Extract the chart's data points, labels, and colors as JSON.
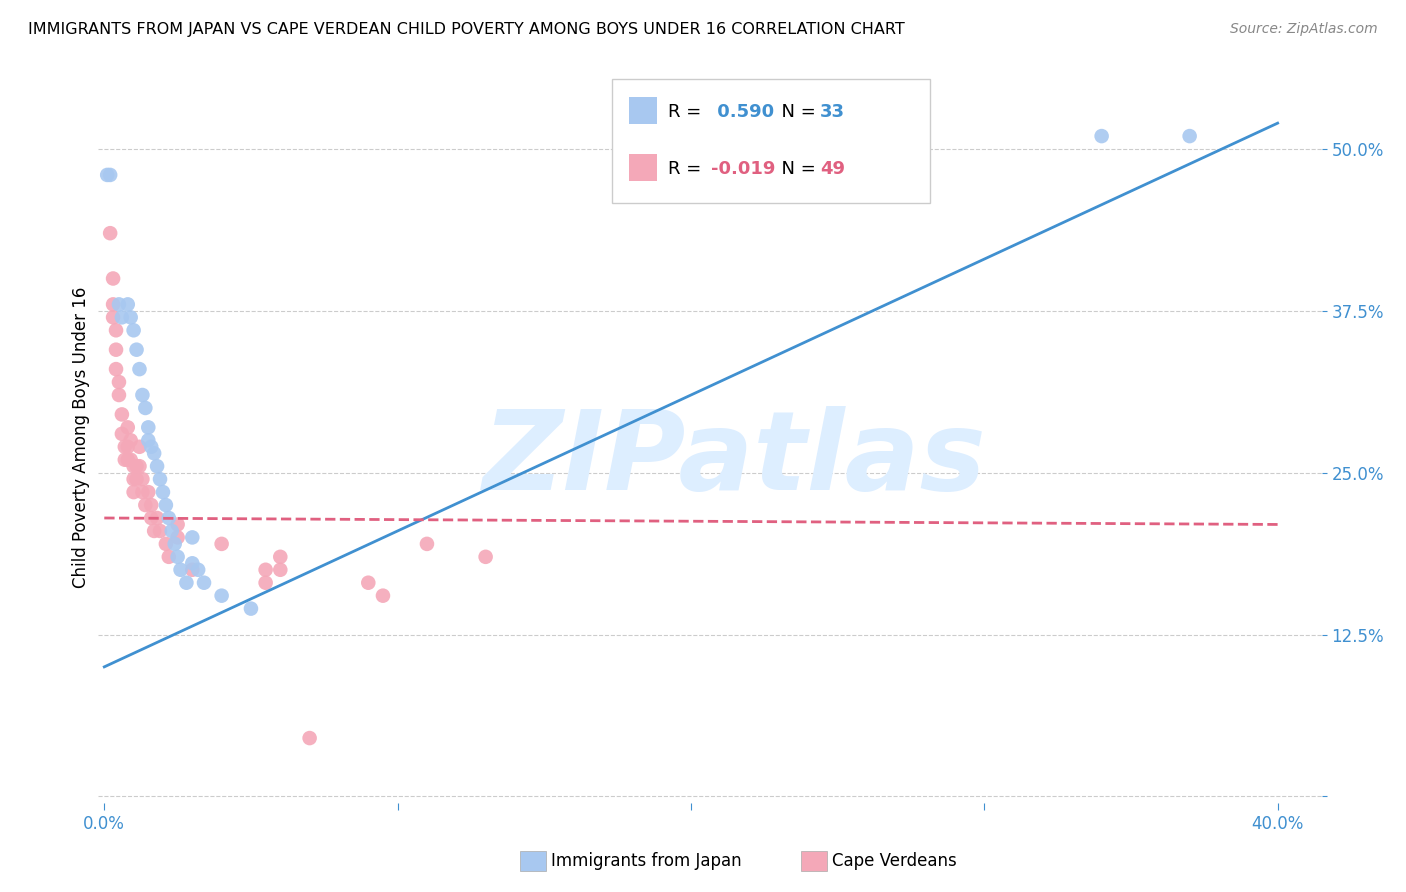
{
  "title": "IMMIGRANTS FROM JAPAN VS CAPE VERDEAN CHILD POVERTY AMONG BOYS UNDER 16 CORRELATION CHART",
  "source": "Source: ZipAtlas.com",
  "ylabel": "Child Poverty Among Boys Under 16",
  "legend_label1": "Immigrants from Japan",
  "legend_label2": "Cape Verdeans",
  "R1": 0.59,
  "N1": 33,
  "R2": -0.019,
  "N2": 49,
  "color_blue": "#A8C8F0",
  "color_pink": "#F4A8B8",
  "line_blue": "#4090D0",
  "line_pink": "#E06080",
  "watermark": "ZIPatlas",
  "watermark_color": "#DDEEFF",
  "blue_scatter": [
    [
      0.001,
      0.48
    ],
    [
      0.002,
      0.48
    ],
    [
      0.005,
      0.38
    ],
    [
      0.006,
      0.37
    ],
    [
      0.008,
      0.38
    ],
    [
      0.009,
      0.37
    ],
    [
      0.01,
      0.36
    ],
    [
      0.011,
      0.345
    ],
    [
      0.012,
      0.33
    ],
    [
      0.013,
      0.31
    ],
    [
      0.014,
      0.3
    ],
    [
      0.015,
      0.285
    ],
    [
      0.015,
      0.275
    ],
    [
      0.016,
      0.27
    ],
    [
      0.017,
      0.265
    ],
    [
      0.018,
      0.255
    ],
    [
      0.019,
      0.245
    ],
    [
      0.02,
      0.235
    ],
    [
      0.021,
      0.225
    ],
    [
      0.022,
      0.215
    ],
    [
      0.023,
      0.205
    ],
    [
      0.024,
      0.195
    ],
    [
      0.025,
      0.185
    ],
    [
      0.026,
      0.175
    ],
    [
      0.028,
      0.165
    ],
    [
      0.03,
      0.2
    ],
    [
      0.03,
      0.18
    ],
    [
      0.032,
      0.175
    ],
    [
      0.034,
      0.165
    ],
    [
      0.04,
      0.155
    ],
    [
      0.05,
      0.145
    ],
    [
      0.34,
      0.51
    ],
    [
      0.37,
      0.51
    ]
  ],
  "pink_scatter": [
    [
      0.002,
      0.435
    ],
    [
      0.003,
      0.4
    ],
    [
      0.003,
      0.38
    ],
    [
      0.003,
      0.37
    ],
    [
      0.004,
      0.36
    ],
    [
      0.004,
      0.345
    ],
    [
      0.004,
      0.33
    ],
    [
      0.005,
      0.32
    ],
    [
      0.005,
      0.31
    ],
    [
      0.006,
      0.295
    ],
    [
      0.006,
      0.28
    ],
    [
      0.007,
      0.27
    ],
    [
      0.007,
      0.26
    ],
    [
      0.008,
      0.285
    ],
    [
      0.008,
      0.27
    ],
    [
      0.008,
      0.26
    ],
    [
      0.009,
      0.275
    ],
    [
      0.009,
      0.26
    ],
    [
      0.01,
      0.255
    ],
    [
      0.01,
      0.245
    ],
    [
      0.01,
      0.235
    ],
    [
      0.011,
      0.255
    ],
    [
      0.011,
      0.245
    ],
    [
      0.012,
      0.27
    ],
    [
      0.012,
      0.255
    ],
    [
      0.013,
      0.245
    ],
    [
      0.013,
      0.235
    ],
    [
      0.014,
      0.225
    ],
    [
      0.015,
      0.235
    ],
    [
      0.016,
      0.225
    ],
    [
      0.016,
      0.215
    ],
    [
      0.017,
      0.205
    ],
    [
      0.018,
      0.215
    ],
    [
      0.019,
      0.205
    ],
    [
      0.021,
      0.195
    ],
    [
      0.022,
      0.185
    ],
    [
      0.025,
      0.21
    ],
    [
      0.025,
      0.2
    ],
    [
      0.03,
      0.175
    ],
    [
      0.04,
      0.195
    ],
    [
      0.055,
      0.175
    ],
    [
      0.055,
      0.165
    ],
    [
      0.06,
      0.185
    ],
    [
      0.06,
      0.175
    ],
    [
      0.07,
      0.045
    ],
    [
      0.09,
      0.165
    ],
    [
      0.095,
      0.155
    ],
    [
      0.11,
      0.195
    ],
    [
      0.13,
      0.185
    ]
  ],
  "blue_line_x": [
    0.0,
    0.4
  ],
  "blue_line_y": [
    0.1,
    0.52
  ],
  "pink_line_x": [
    0.0,
    0.4
  ],
  "pink_line_y": [
    0.215,
    0.21
  ],
  "xlim": [
    -0.002,
    0.415
  ],
  "ylim": [
    -0.005,
    0.56
  ],
  "y_ticks": [
    0.0,
    0.125,
    0.25,
    0.375,
    0.5
  ],
  "y_tick_labels": [
    "",
    "12.5%",
    "25.0%",
    "37.5%",
    "50.0%"
  ],
  "x_ticks": [
    0.0,
    0.1,
    0.2,
    0.3,
    0.4
  ],
  "x_tick_labels_bottom": [
    "0.0%",
    "",
    "",
    "",
    "40.0%"
  ]
}
